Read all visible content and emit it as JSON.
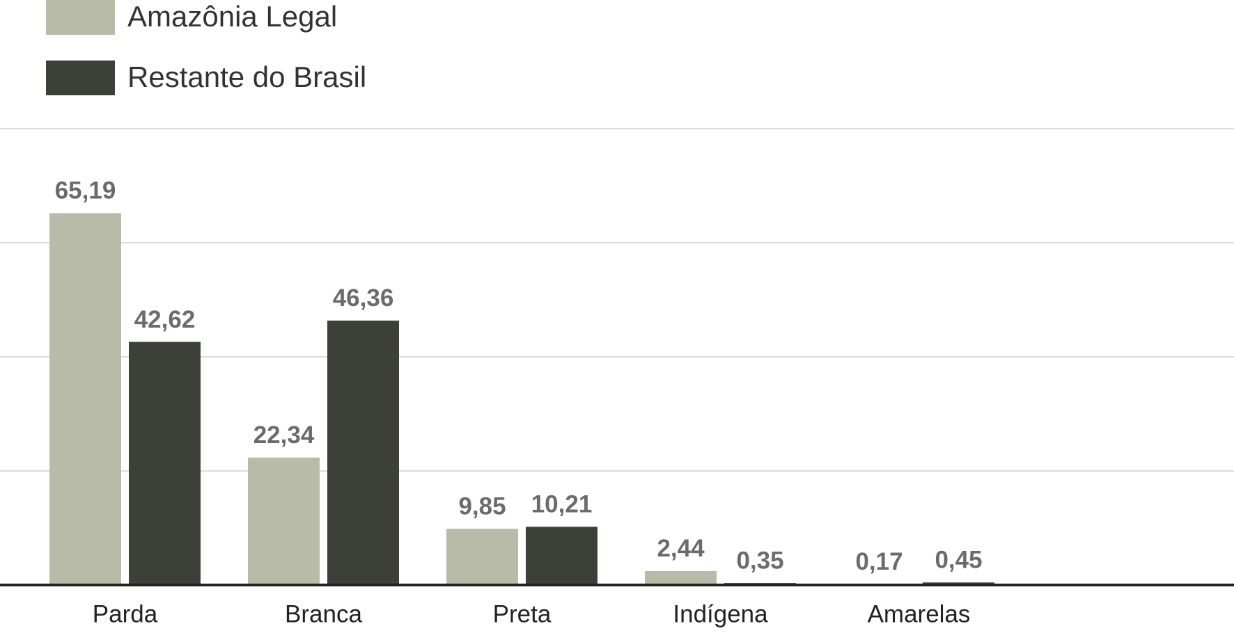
{
  "chart_data": {
    "type": "bar",
    "categories": [
      "Parda",
      "Branca",
      "Preta",
      "Indígena",
      "Amarelas"
    ],
    "series": [
      {
        "name": "Amazônia Legal",
        "color": "#b8bba8",
        "values": [
          65.19,
          22.34,
          9.85,
          2.44,
          0.17
        ],
        "value_labels": [
          "65,19",
          "22,34",
          "9,85",
          "2,44",
          "0,17"
        ]
      },
      {
        "name": "Restante do Brasil",
        "color": "#3c4039",
        "values": [
          42.62,
          46.36,
          10.21,
          0.35,
          0.45
        ],
        "value_labels": [
          "42,62",
          "46,36",
          "10,21",
          "0,35",
          "0,45"
        ]
      }
    ],
    "ylim": [
      0,
      80
    ],
    "yticks": [
      0,
      20,
      40,
      60,
      80
    ],
    "grid": true
  }
}
